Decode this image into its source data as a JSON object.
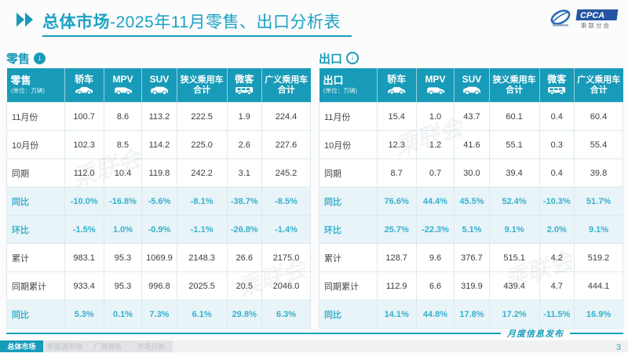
{
  "header": {
    "title_bold": "总体市场",
    "title_rest": "-2025年11月零售、出口分析表",
    "logo": {
      "name": "CPCA",
      "cn": "乘联分会"
    }
  },
  "columns": [
    {
      "id": "sedan",
      "lines": [
        "轿车"
      ],
      "icon": "sedan-icon"
    },
    {
      "id": "mpv",
      "lines": [
        "MPV"
      ],
      "icon": "mpv-icon"
    },
    {
      "id": "suv",
      "lines": [
        "SUV"
      ],
      "icon": "suv-icon"
    },
    {
      "id": "npv",
      "lines": [
        "狭义乘用车",
        "合计"
      ],
      "icon": null
    },
    {
      "id": "micro",
      "lines": [
        "微客"
      ],
      "icon": "microvan-icon"
    },
    {
      "id": "bpv",
      "lines": [
        "广义乘用车",
        "合计"
      ],
      "icon": null
    }
  ],
  "retail": {
    "section_label": "零售",
    "arrow_icon": "circle-down-arrow-icon",
    "corner_label": "零售",
    "unit": "(单位：万辆)",
    "rows": [
      {
        "label": "11月份",
        "values": [
          "100.7",
          "8.6",
          "113.2",
          "222.5",
          "1.9",
          "224.4"
        ],
        "highlight": false
      },
      {
        "label": "10月份",
        "values": [
          "102.3",
          "8.5",
          "114.2",
          "225.0",
          "2.6",
          "227.6"
        ],
        "highlight": false
      },
      {
        "label": "同期",
        "values": [
          "112.0",
          "10.4",
          "119.8",
          "242.2",
          "3.1",
          "245.2"
        ],
        "highlight": false
      },
      {
        "label": "同比",
        "values": [
          "-10.0%",
          "-16.8%",
          "-5.6%",
          "-8.1%",
          "-38.7%",
          "-8.5%"
        ],
        "highlight": true
      },
      {
        "label": "环比",
        "values": [
          "-1.5%",
          "1.0%",
          "-0.9%",
          "-1.1%",
          "-26.8%",
          "-1.4%"
        ],
        "highlight": true
      },
      {
        "label": "累计",
        "values": [
          "983.1",
          "95.3",
          "1069.9",
          "2148.3",
          "26.6",
          "2175.0"
        ],
        "highlight": false
      },
      {
        "label": "同期累计",
        "values": [
          "933.4",
          "95.3",
          "996.8",
          "2025.5",
          "20.5",
          "2046.0"
        ],
        "highlight": false
      },
      {
        "label": "同比",
        "values": [
          "5.3%",
          "0.1%",
          "7.3%",
          "6.1%",
          "29.8%",
          "6.3%"
        ],
        "highlight": true
      }
    ]
  },
  "export": {
    "section_label": "出口",
    "arrow_icon": "circle-down-arrow-icon",
    "corner_label": "出口",
    "unit": "(单位：万辆)",
    "rows": [
      {
        "label": "11月份",
        "values": [
          "15.4",
          "1.0",
          "43.7",
          "60.1",
          "0.4",
          "60.4"
        ],
        "highlight": false
      },
      {
        "label": "10月份",
        "values": [
          "12.3",
          "1.2",
          "41.6",
          "55.1",
          "0.3",
          "55.4"
        ],
        "highlight": false
      },
      {
        "label": "同期",
        "values": [
          "8.7",
          "0.7",
          "30.0",
          "39.4",
          "0.4",
          "39.8"
        ],
        "highlight": false
      },
      {
        "label": "同比",
        "values": [
          "76.6%",
          "44.4%",
          "45.5%",
          "52.4%",
          "-10.3%",
          "51.7%"
        ],
        "highlight": true
      },
      {
        "label": "环比",
        "values": [
          "25.7%",
          "-22.3%",
          "5.1%",
          "9.1%",
          "2.0%",
          "9.1%"
        ],
        "highlight": true
      },
      {
        "label": "累计",
        "values": [
          "128.7",
          "9.6",
          "376.7",
          "515.1",
          "4.2",
          "519.2"
        ],
        "highlight": false
      },
      {
        "label": "同期累计",
        "values": [
          "112.9",
          "6.6",
          "319.9",
          "439.4",
          "4.7",
          "444.1"
        ],
        "highlight": false
      },
      {
        "label": "同比",
        "values": [
          "14.1%",
          "44.8%",
          "17.8%",
          "17.2%",
          "-11.5%",
          "16.9%"
        ],
        "highlight": true
      }
    ]
  },
  "watermark": "乘联会",
  "footer": {
    "tabs": [
      {
        "label": "总体市场",
        "active": true
      },
      {
        "label": "新能源市场",
        "active": false
      },
      {
        "label": "厂商排名",
        "active": false
      },
      {
        "label": "市场分析",
        "active": false
      }
    ],
    "publication": "月度信息发布",
    "page_number": "3"
  },
  "colors": {
    "accent": "#189bb8",
    "highlight_bg": "#e8f4f8",
    "highlight_text": "#35b1cd"
  }
}
